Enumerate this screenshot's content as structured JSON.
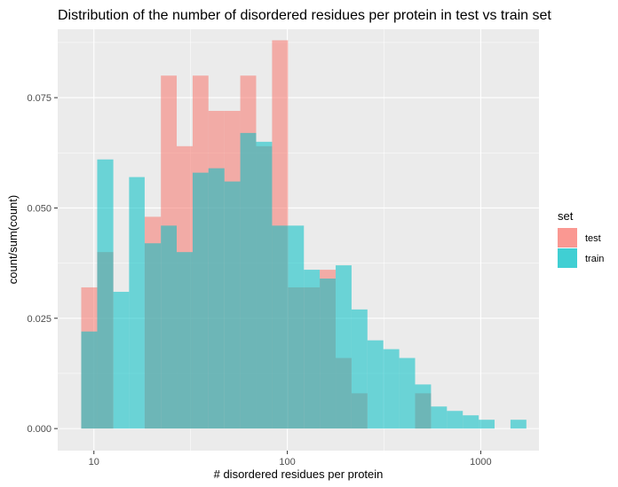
{
  "chart_data": {
    "type": "bar",
    "title": "Distribution of the number of disordered residues per protein in test vs train set",
    "xlabel": "# disordered residues per protein",
    "ylabel": "count/sum(count)",
    "x_scale": "log10",
    "xlim": [
      6.5,
      2000
    ],
    "ylim": [
      -0.005,
      0.0905
    ],
    "x_ticks": [
      10,
      100,
      1000
    ],
    "x_tick_labels": [
      "10",
      "100",
      "1000"
    ],
    "y_ticks": [
      0,
      0.025,
      0.05,
      0.075
    ],
    "y_tick_labels": [
      "0.000",
      "0.025",
      "0.050",
      "0.075"
    ],
    "grid": true,
    "legend": {
      "title": "set",
      "position": "right",
      "entries": [
        "test",
        "train"
      ]
    },
    "colors": {
      "panel_background": "#ebebeb",
      "grid": "#ffffff",
      "test": "#f8766d",
      "train": "#00bfc4",
      "fill_opacity": 0.55
    },
    "bin_edges": [
      8.6,
      10.4,
      12.6,
      15.2,
      18.3,
      22.2,
      26.8,
      32.4,
      39.1,
      47.3,
      57.1,
      69.0,
      83.4,
      100.8,
      121.8,
      147.1,
      177.8,
      214.8,
      259.5,
      313.6,
      378.9,
      457.8,
      553.2,
      668.4,
      807.6,
      975.8,
      1179.0,
      1424.7,
      1721.4
    ],
    "series": [
      {
        "name": "test",
        "values": [
          0.032,
          0.04,
          0,
          0,
          0.048,
          0.08,
          0.064,
          0.08,
          0.072,
          0.072,
          0.08,
          0.064,
          0.088,
          0.032,
          0.032,
          0.036,
          0.016,
          0.008,
          0,
          0,
          0,
          0.008,
          0,
          0,
          0,
          0,
          0,
          0
        ]
      },
      {
        "name": "train",
        "values": [
          0.022,
          0.061,
          0.031,
          0.057,
          0.042,
          0.046,
          0.04,
          0.058,
          0.059,
          0.056,
          0.067,
          0.065,
          0.046,
          0.046,
          0.036,
          0.034,
          0.037,
          0.027,
          0.02,
          0.018,
          0.016,
          0.01,
          0.005,
          0.004,
          0.003,
          0.002,
          0,
          0.002
        ]
      }
    ]
  }
}
